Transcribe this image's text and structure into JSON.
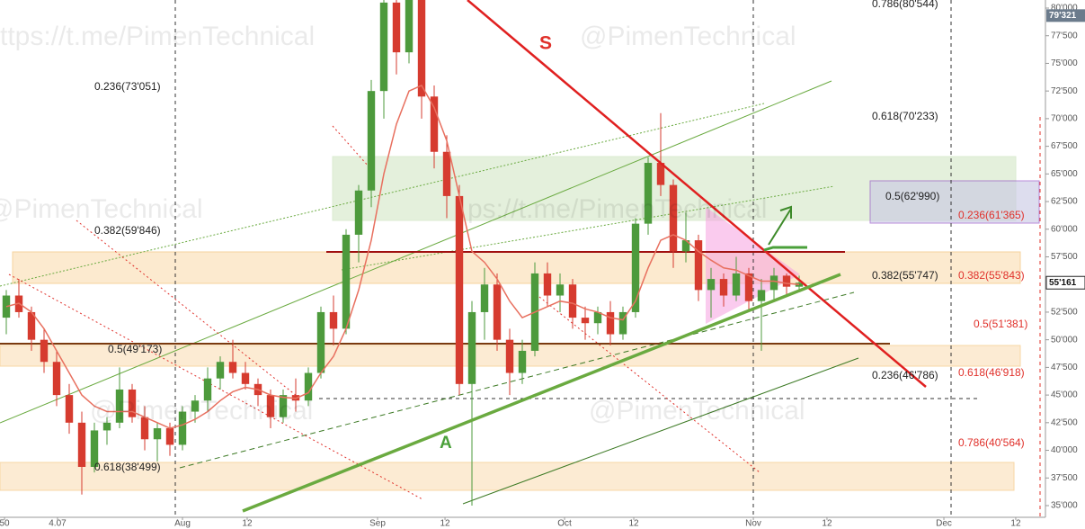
{
  "chart_data": {
    "type": "candlestick",
    "open": [
      52000,
      54000,
      52500,
      50000,
      48000,
      45000,
      42500,
      38500,
      41800,
      42500,
      45500,
      43000,
      41000,
      42000,
      40500,
      43500,
      44500,
      46500,
      48000,
      47000,
      46000,
      45000,
      43000,
      45000,
      44500,
      47000,
      52500,
      51000,
      59500,
      63500,
      72500,
      80500,
      76000,
      81000,
      72000,
      67000,
      63000,
      46000,
      52500,
      55000,
      50000,
      47000,
      49000,
      56000,
      54000,
      55000,
      52000,
      51500,
      52500,
      50500,
      52500,
      60500,
      66000,
      64000,
      58000,
      59000,
      54500,
      55500,
      54000,
      56000,
      53500,
      54500,
      55800,
      54800
    ],
    "high": [
      54500,
      55500,
      53000,
      51000,
      49000,
      46000,
      43500,
      42500,
      43000,
      47500,
      46000,
      44000,
      42500,
      42500,
      44000,
      45000,
      47500,
      48500,
      50000,
      48000,
      46500,
      45500,
      45500,
      46500,
      47500,
      53000,
      54000,
      60000,
      64000,
      73500,
      82000,
      81500,
      82000,
      81500,
      73000,
      68500,
      64000,
      53500,
      56500,
      56000,
      51000,
      50000,
      57000,
      57000,
      56000,
      55500,
      53000,
      53000,
      53500,
      53000,
      61000,
      66500,
      70500,
      64500,
      61500,
      59500,
      56500,
      56000,
      57500,
      56500,
      55500,
      56500,
      56000,
      55800
    ],
    "low": [
      50500,
      52000,
      49000,
      47000,
      44000,
      41500,
      36000,
      38000,
      40500,
      42000,
      42500,
      40000,
      39000,
      39500,
      40000,
      42500,
      43500,
      45500,
      46500,
      45500,
      44000,
      42000,
      42500,
      43500,
      44000,
      46500,
      49500,
      50500,
      57000,
      62000,
      70000,
      74000,
      75000,
      70000,
      65500,
      61000,
      45000,
      35000,
      50000,
      49000,
      45000,
      46000,
      48500,
      53000,
      52500,
      51000,
      50000,
      50500,
      49500,
      50000,
      52000,
      59500,
      63000,
      56500,
      57000,
      53500,
      52000,
      53000,
      53500,
      52500,
      49000,
      53500,
      54000,
      54500
    ],
    "close": [
      54000,
      52500,
      50000,
      48000,
      45000,
      42500,
      38500,
      41800,
      42500,
      45500,
      43000,
      41000,
      42000,
      40500,
      43500,
      44500,
      46500,
      48000,
      47000,
      46000,
      45000,
      43000,
      45000,
      44500,
      47000,
      52500,
      51000,
      59500,
      63500,
      72500,
      80500,
      76000,
      81000,
      72000,
      67000,
      63000,
      46000,
      52500,
      55000,
      50000,
      47000,
      49000,
      56000,
      54000,
      55000,
      52000,
      51500,
      52500,
      50500,
      52500,
      60500,
      66000,
      64000,
      58000,
      59000,
      54500,
      55500,
      54000,
      56000,
      53500,
      54500,
      55800,
      54800,
      55161
    ],
    "up_color": "#4d9a3c",
    "down_color": "#d63b2f",
    "moving_average": {
      "color": "#e8705f",
      "values": [
        53000,
        53300,
        52500,
        51000,
        49000,
        47000,
        45000,
        44000,
        43500,
        43500,
        43500,
        43000,
        42500,
        42000,
        42300,
        42800,
        43500,
        44500,
        45300,
        45700,
        45500,
        45000,
        44800,
        44700,
        45200,
        47000,
        48500,
        51000,
        54500,
        59000,
        65000,
        69500,
        72500,
        73000,
        71000,
        68000,
        63000,
        58000,
        57000,
        55500,
        53500,
        52000,
        52500,
        53000,
        53500,
        53300,
        52800,
        52500,
        52000,
        51800,
        53500,
        56500,
        59000,
        59500,
        59000,
        58000,
        57200,
        56500,
        56300,
        55800,
        55300,
        55300,
        55100,
        55000
      ]
    },
    "xlim": [
      -0.5,
      82.57
    ],
    "xticks": [
      {
        "value": -0.14,
        "label": "50"
      },
      4.07,
      {
        "value": 14,
        "label": "Aug"
      },
      {
        "value": 19.14,
        "label": "12"
      },
      {
        "value": 29.5,
        "label": "Sep"
      },
      {
        "value": 34.86,
        "label": "12"
      },
      {
        "value": 44.36,
        "label": "Oct"
      },
      {
        "value": 49.86,
        "label": "12"
      },
      {
        "value": 59.36,
        "label": "Nov"
      },
      {
        "value": 65.21,
        "label": "12"
      },
      {
        "value": 74.5,
        "label": "Dec"
      },
      {
        "value": 80.21,
        "label": "12"
      }
    ],
    "ylim": [
      32884,
      80732
    ],
    "yticks": [
      {
        "value": 35000,
        "label": "35'000"
      },
      {
        "value": 37500,
        "label": "37'500"
      },
      {
        "value": 40000,
        "label": "40'000"
      },
      {
        "value": 42500,
        "label": "42'500"
      },
      {
        "value": 45000,
        "label": "45'000"
      },
      {
        "value": 47500,
        "label": "47'500"
      },
      {
        "value": 50000,
        "label": "50'000"
      },
      {
        "value": 52500,
        "label": "52'500"
      },
      {
        "value": 55000,
        "label": "55'000"
      },
      {
        "value": 57500,
        "label": "57'500"
      },
      {
        "value": 60000,
        "label": "60'000"
      },
      {
        "value": 62500,
        "label": "62'500"
      },
      {
        "value": 65000,
        "label": "65'000"
      },
      {
        "value": 67500,
        "label": "67'500"
      },
      {
        "value": 70000,
        "label": "70'000"
      },
      {
        "value": 72500,
        "label": "72'500"
      },
      {
        "value": 75000,
        "label": "75'000"
      },
      {
        "value": 77500,
        "label": "77'500"
      },
      {
        "value": 80000,
        "label": "80'000"
      }
    ],
    "price_tags": [
      {
        "value": 79321,
        "label": "79'321"
      },
      {
        "value": 55161,
        "label": "55'161"
      }
    ],
    "annotations": [
      "0.786(80'544)",
      "0.236(73'051)",
      "0.618(70'233)",
      "0.5(62'990)",
      "0.236(61'365)",
      "0.382(59'846)",
      "0.382(55'747)",
      "0.382(55'843)",
      "0.5(51'381)",
      "0.5(49'173)",
      "0.236(46'786)",
      "0.618(46'918)",
      "0.786(40'564)",
      "0.618(38'499)",
      "S",
      "A"
    ],
    "watermarks": [
      "ttps://t.me/PimenTechnical",
      "@PimenTechnical",
      "@PimenTechnical",
      "ps://t.me/PimenTechnical",
      "@Pimen Technical",
      "@PimenTechnical"
    ]
  }
}
